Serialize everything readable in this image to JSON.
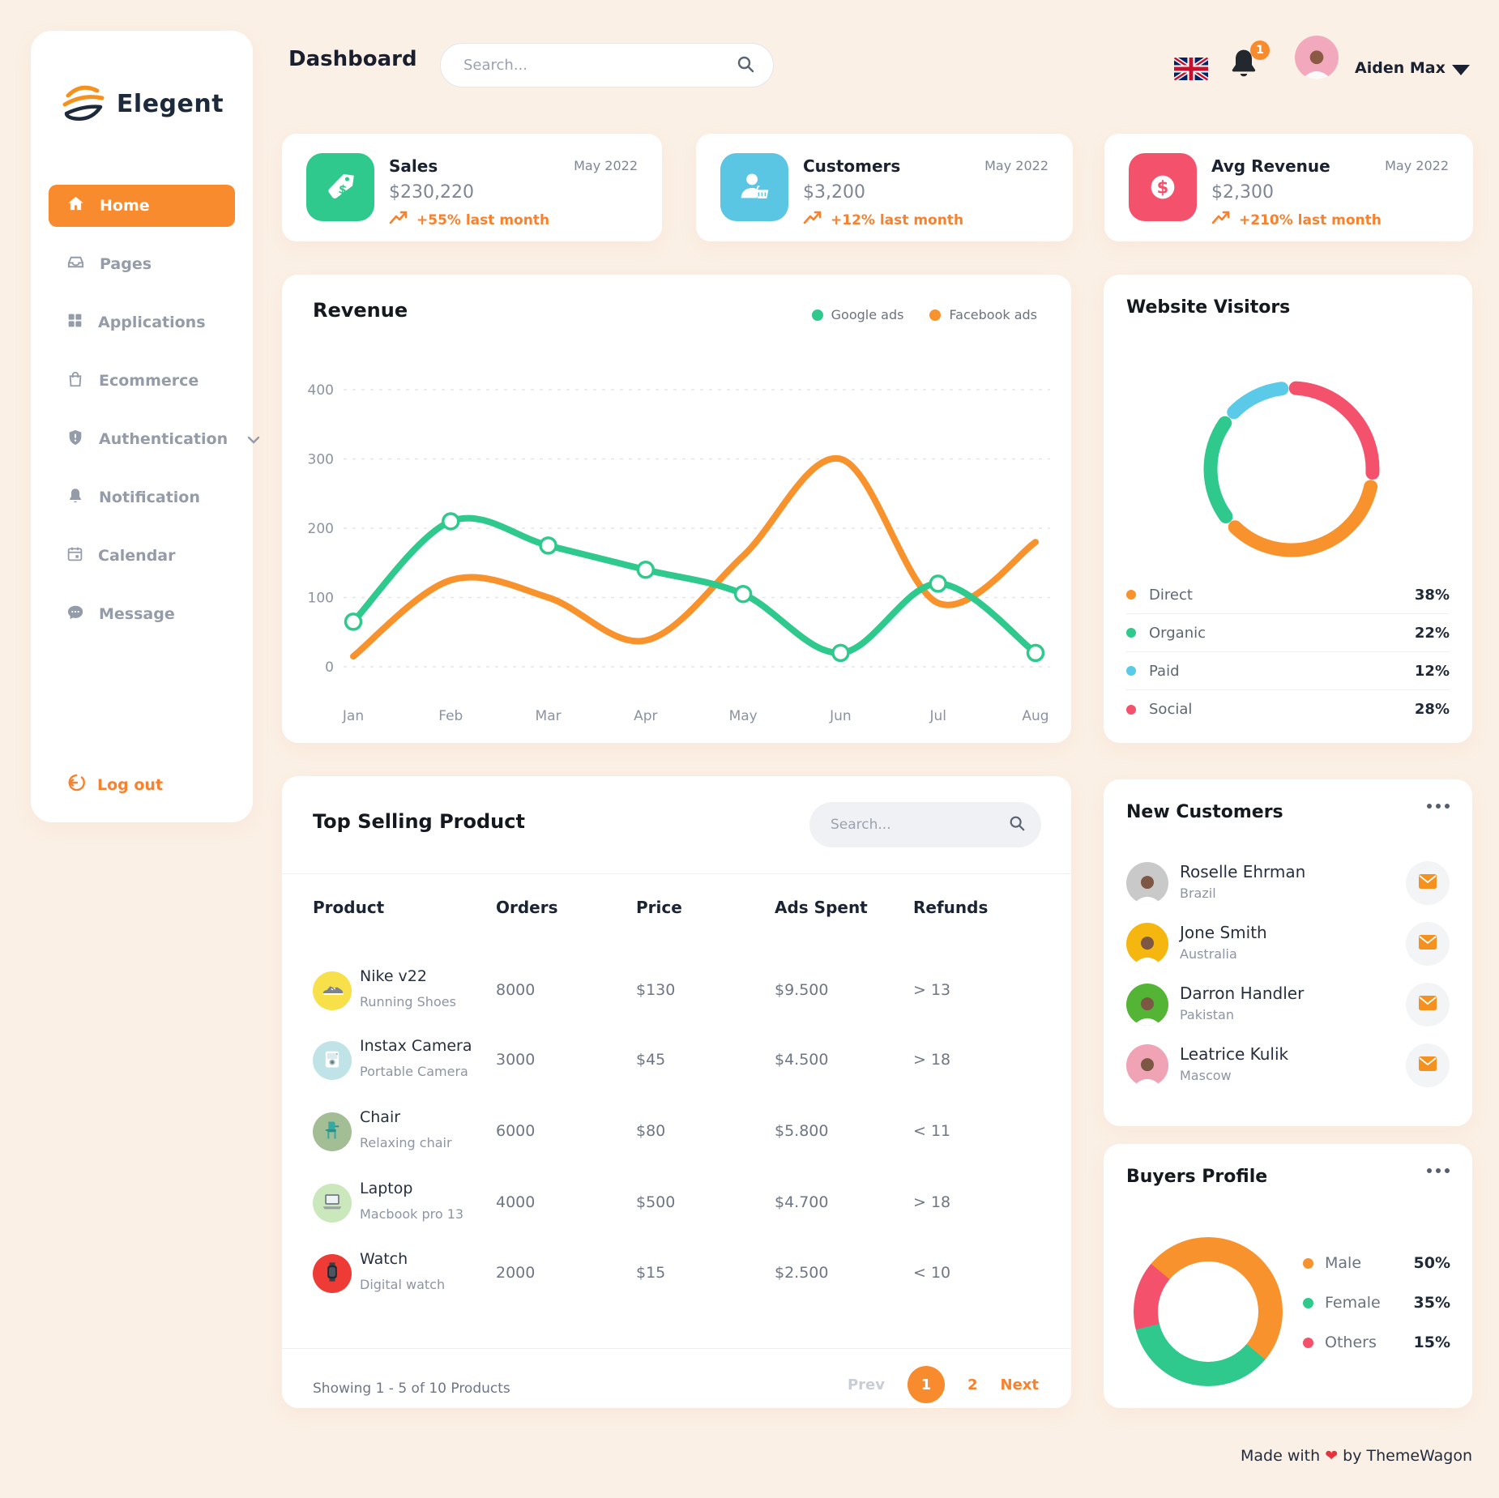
{
  "app": {
    "brand": "Elegent",
    "footer_prefix": "Made with",
    "footer_heart": "❤",
    "footer_suffix": "by ThemeWagon"
  },
  "sidebar": {
    "items": [
      {
        "label": "Home",
        "icon": "home-icon",
        "active": true
      },
      {
        "label": "Pages",
        "icon": "pages-icon",
        "active": false
      },
      {
        "label": "Applications",
        "icon": "applications-icon",
        "active": false
      },
      {
        "label": "Ecommerce",
        "icon": "ecommerce-icon",
        "active": false
      },
      {
        "label": "Authentication",
        "icon": "authentication-icon",
        "active": false,
        "has_submenu": true
      },
      {
        "label": "Notification",
        "icon": "notification-icon",
        "active": false
      },
      {
        "label": "Calendar",
        "icon": "calendar-icon",
        "active": false
      },
      {
        "label": "Message",
        "icon": "message-icon",
        "active": false
      }
    ],
    "logout_label": "Log out"
  },
  "topbar": {
    "title": "Dashboard",
    "search_placeholder": "Search...",
    "language_flag": "uk-flag",
    "notification_count": "1",
    "user_name": "Aiden Max"
  },
  "stats": [
    {
      "title": "Sales",
      "period": "May 2022",
      "value": "$230,220",
      "trend": "+55% last month",
      "icon": "price-tag-icon",
      "icon_bg": "#2FC98D"
    },
    {
      "title": "Customers",
      "period": "May 2022",
      "value": "$3,200",
      "trend": "+12% last month",
      "icon": "customer-icon",
      "icon_bg": "#5BC6E3"
    },
    {
      "title": "Avg Revenue",
      "period": "May 2022",
      "value": "$2,300",
      "trend": "+210% last month",
      "icon": "dollar-icon",
      "icon_bg": "#F4516C"
    }
  ],
  "chart_data": [
    {
      "type": "line",
      "title": "Revenue",
      "x": [
        "Jan",
        "Feb",
        "Mar",
        "Apr",
        "May",
        "Jun",
        "Jul",
        "Aug"
      ],
      "ylim": [
        0,
        400
      ],
      "yticks": [
        0,
        100,
        200,
        300,
        400
      ],
      "grid": "dashed-horizontal",
      "legend_position": "top-right",
      "series": [
        {
          "name": "Google ads",
          "color": "#2FC98D",
          "markers": true,
          "values": [
            65,
            210,
            175,
            140,
            105,
            20,
            120,
            20
          ]
        },
        {
          "name": "Facebook ads",
          "color": "#F8922D",
          "markers": false,
          "values": [
            15,
            125,
            100,
            38,
            160,
            300,
            92,
            180
          ]
        }
      ]
    },
    {
      "type": "pie",
      "subtype": "donut-rounded-segments",
      "title": "Website Visitors",
      "segments": [
        {
          "label": "Direct",
          "value": 38,
          "color": "#F8922D"
        },
        {
          "label": "Organic",
          "value": 22,
          "color": "#2FC98D"
        },
        {
          "label": "Paid",
          "value": 12,
          "color": "#5BC9E8"
        },
        {
          "label": "Social",
          "value": 28,
          "color": "#F4516C"
        }
      ],
      "draw_order": [
        3,
        0,
        1,
        2
      ],
      "start_angle": 3,
      "gap_deg": 10,
      "legend_position": "bottom-list"
    },
    {
      "type": "pie",
      "subtype": "donut-flat",
      "title": "Buyers Profile",
      "segments": [
        {
          "label": "Male",
          "value": 50,
          "color": "#F8922D"
        },
        {
          "label": "Female",
          "value": 35,
          "color": "#2FC98D"
        },
        {
          "label": "Others",
          "value": 15,
          "color": "#F4516C"
        }
      ],
      "start_angle": 310,
      "legend_position": "right-list"
    }
  ],
  "table": {
    "title": "Top Selling Product",
    "search_placeholder": "Search...",
    "columns": [
      "Product",
      "Orders",
      "Price",
      "Ads Spent",
      "Refunds"
    ],
    "rows": [
      {
        "name": "Nike v22",
        "sub": "Running Shoes",
        "orders": "8000",
        "price": "$130",
        "ads_spent": "$9.500",
        "refunds": "> 13",
        "icon": "shoe-icon",
        "icon_bg": "#F7E04A"
      },
      {
        "name": "Instax Camera",
        "sub": "Portable Camera",
        "orders": "3000",
        "price": "$45",
        "ads_spent": "$4.500",
        "refunds": "> 18",
        "icon": "camera-icon",
        "icon_bg": "#BFE3E6"
      },
      {
        "name": "Chair",
        "sub": "Relaxing chair",
        "orders": "6000",
        "price": "$80",
        "ads_spent": "$5.800",
        "refunds": "< 11",
        "icon": "chair-icon",
        "icon_bg": "#A3BD95"
      },
      {
        "name": "Laptop",
        "sub": "Macbook pro 13",
        "orders": "4000",
        "price": "$500",
        "ads_spent": "$4.700",
        "refunds": "> 18",
        "icon": "laptop-icon",
        "icon_bg": "#CBE7BC"
      },
      {
        "name": "Watch",
        "sub": "Digital watch",
        "orders": "2000",
        "price": "$15",
        "ads_spent": "$2.500",
        "refunds": "< 10",
        "icon": "watch-icon",
        "icon_bg": "#EF3B36"
      }
    ],
    "footer": {
      "showing": "Showing 1 - 5 of 10 Products",
      "prev": "Prev",
      "pages": [
        "1",
        "2"
      ],
      "active_page": "1",
      "next": "Next"
    }
  },
  "new_customers": {
    "title": "New Customers",
    "items": [
      {
        "name": "Roselle Ehrman",
        "country": "Brazil",
        "avatar_bg": "#C9C9C9"
      },
      {
        "name": "Jone Smith",
        "country": "Australia",
        "avatar_bg": "#F5B70F"
      },
      {
        "name": "Darron Handler",
        "country": "Pakistan",
        "avatar_bg": "#54B435"
      },
      {
        "name": "Leatrice Kulik",
        "country": "Mascow",
        "avatar_bg": "#EFA3B5"
      }
    ]
  },
  "buyers_profile": {
    "title": "Buyers Profile"
  },
  "website_visitors": {
    "title": "Website Visitors"
  }
}
